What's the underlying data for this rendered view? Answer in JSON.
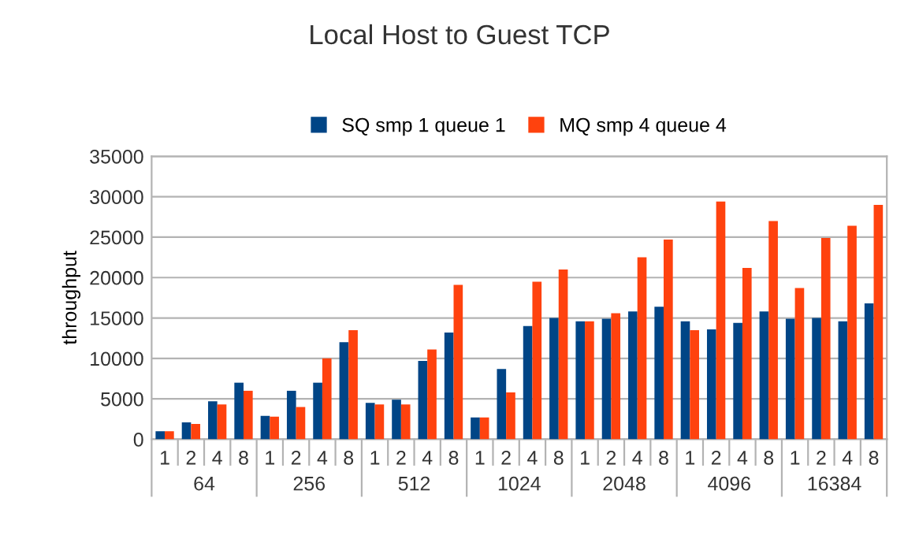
{
  "chart_data": {
    "type": "bar",
    "title": "Local Host to Guest TCP",
    "ylabel": "throughput",
    "categories": [
      "1",
      "2",
      "4",
      "8",
      "1",
      "2",
      "4",
      "8",
      "1",
      "2",
      "4",
      "8",
      "1",
      "2",
      "4",
      "8",
      "1",
      "2",
      "4",
      "8",
      "1",
      "2",
      "4",
      "8",
      "1",
      "2",
      "4",
      "8"
    ],
    "annotations": [
      "64",
      "256",
      "512",
      "1024",
      "2048",
      "4096",
      "16384"
    ],
    "series": [
      {
        "name": "SQ smp 1 queue 1",
        "color": "#004586",
        "values": [
          1000,
          2100,
          4700,
          7000,
          2900,
          6000,
          7000,
          12000,
          4500,
          4900,
          9700,
          13200,
          2700,
          8700,
          14000,
          15000,
          14600,
          14900,
          15800,
          16400,
          14600,
          13600,
          14400,
          15800,
          14900,
          15000,
          14600,
          16800
        ]
      },
      {
        "name": "MQ smp 4 queue 4",
        "color": "#ff420e",
        "values": [
          1000,
          1900,
          4300,
          6000,
          2800,
          4000,
          10000,
          13500,
          4300,
          4300,
          11100,
          19100,
          2700,
          5800,
          19500,
          21000,
          14600,
          15600,
          22500,
          24700,
          13500,
          29400,
          21200,
          27000,
          18700,
          24900,
          26400,
          29000
        ]
      }
    ],
    "ylim": [
      0,
      35000
    ],
    "yticks": [
      0,
      5000,
      10000,
      15000,
      20000,
      25000,
      30000,
      35000
    ],
    "grid": "y",
    "legend": "top"
  }
}
